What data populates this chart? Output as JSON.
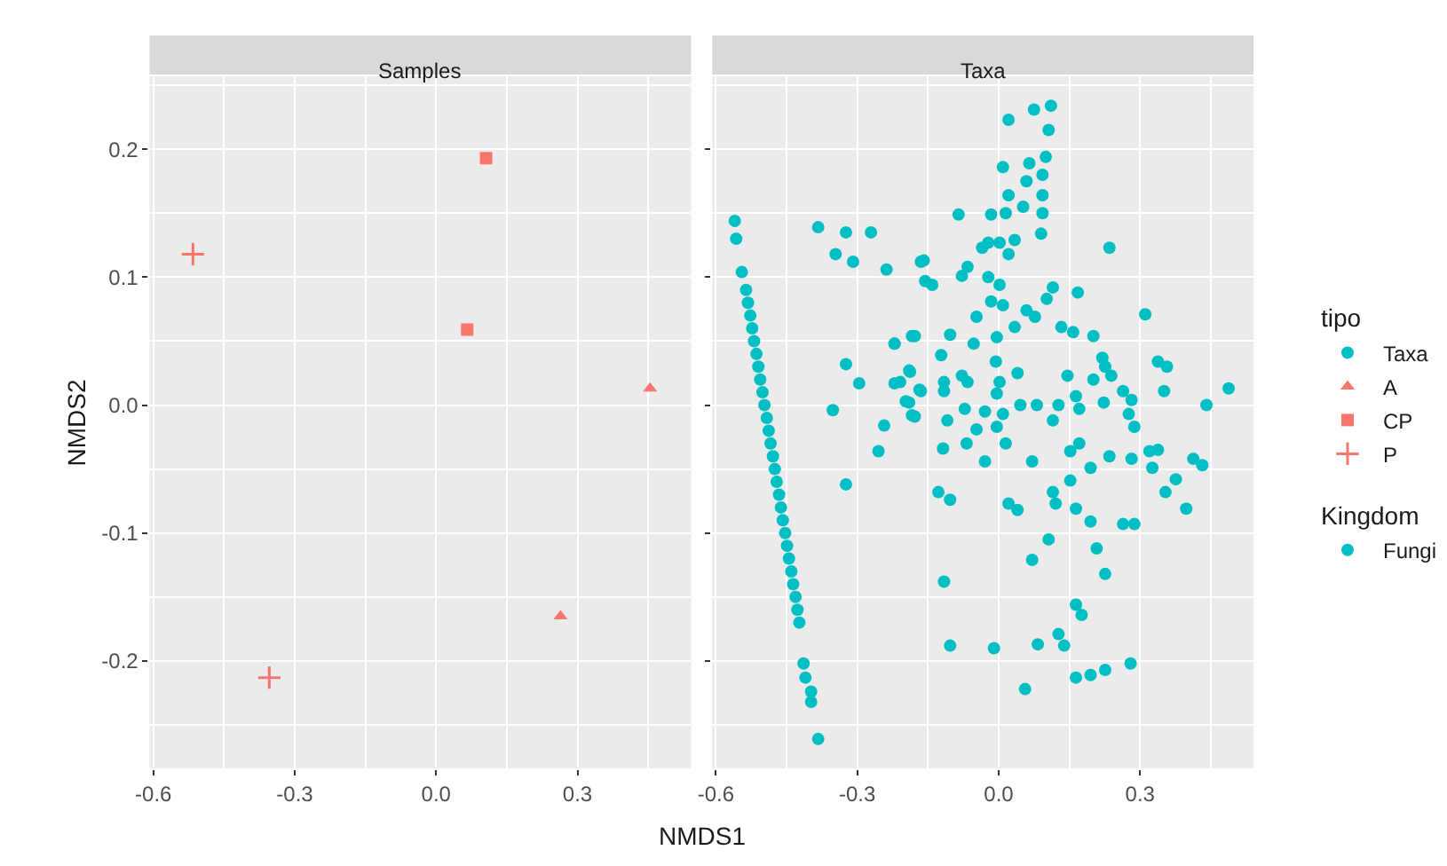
{
  "chart_data": [
    {
      "type": "scatter",
      "title": "Samples",
      "xlabel": "NMDS1",
      "ylabel": "NMDS2",
      "legend_title": "tipo",
      "legend": "right",
      "grid": true,
      "xlim": [
        -0.608,
        0.541
      ],
      "ylim": [
        -0.284,
        0.257
      ],
      "xticks": [
        -0.6,
        -0.3,
        {
          "value": 0,
          "label": "0.0"
        },
        0.3
      ],
      "yticks": [
        -0.2,
        -0.1,
        {
          "value": 0,
          "label": "0.0"
        },
        0.1,
        0.2
      ],
      "series": [
        {
          "name": "Taxa",
          "marker": "circle",
          "color": "#00bfc4",
          "x": [
            null
          ],
          "values": [
            null
          ]
        },
        {
          "name": "A",
          "marker": "triangle",
          "color": "#f8766d",
          "x": [
            0.454,
            0.264
          ],
          "values": [
            0.013,
            -0.165
          ]
        },
        {
          "name": "CP",
          "marker": "square",
          "color": "#f8766d",
          "x": [
            0.106,
            0.066
          ],
          "values": [
            0.193,
            0.059
          ]
        },
        {
          "name": "P",
          "marker": "cross",
          "color": "#f8766d",
          "x": [
            -0.516,
            -0.354
          ],
          "values": [
            0.118,
            -0.213
          ]
        }
      ]
    },
    {
      "type": "scatter",
      "title": "Taxa",
      "legend_title": "Kingdom",
      "legend": "right",
      "grid": true,
      "tick_labels": "x",
      "xlim": [
        -0.608,
        0.541
      ],
      "ylim": [
        -0.284,
        0.257
      ],
      "xticks": [
        -0.6,
        -0.3,
        {
          "value": 0,
          "label": "0.0"
        },
        0.3
      ],
      "yticks": [
        -0.2,
        -0.1,
        0,
        0.1,
        0.2
      ],
      "series": [
        {
          "name": "Fungi",
          "marker": "circle",
          "color": "#00bfc4",
          "x": [
            -0.56,
            -0.557,
            -0.545,
            -0.536,
            -0.532,
            -0.527,
            -0.523,
            -0.519,
            -0.514,
            -0.51,
            -0.506,
            -0.501,
            -0.497,
            -0.492,
            -0.488,
            -0.484,
            -0.479,
            -0.475,
            -0.471,
            -0.466,
            -0.462,
            -0.458,
            -0.453,
            -0.449,
            -0.445,
            -0.44,
            -0.436,
            -0.431,
            -0.427,
            -0.423,
            -0.414,
            -0.41,
            -0.398,
            -0.398,
            -0.383,
            -0.383,
            -0.324,
            -0.271,
            -0.346,
            -0.309,
            -0.238,
            -0.165,
            -0.156,
            -0.221,
            -0.184,
            -0.324,
            -0.296,
            -0.221,
            -0.188,
            -0.168,
            -0.197,
            -0.184,
            -0.352,
            -0.243,
            -0.255,
            -0.324,
            0.021,
            0.075,
            0.111,
            0.106,
            0.009,
            0.065,
            0.1,
            0.059,
            0.093,
            0.021,
            0.052,
            0.093,
            0.093,
            -0.085,
            -0.016,
            0.015,
            0.09,
            -0.022,
            0.002,
            0.034,
            -0.035,
            0.021,
            0.235,
            -0.159,
            -0.066,
            -0.078,
            -0.141,
            -0.022,
            0.002,
            0.115,
            0.168,
            0.102,
            -0.016,
            0.009,
            -0.047,
            0.059,
            0.077,
            0.311,
            0.034,
            -0.103,
            0.133,
            0.158,
            0.201,
            -0.178,
            -0.053,
            -0.004,
            -0.221,
            -0.122,
            0.22,
            0.338,
            0.357,
            -0.006,
            -0.078,
            0.04,
            0.146,
            0.226,
            0.239,
            -0.19,
            -0.116,
            0.002,
            0.201,
            0.488,
            -0.209,
            -0.165,
            -0.116,
            -0.066,
            -0.004,
            0.046,
            0.081,
            0.127,
            0.164,
            0.223,
            0.264,
            0.282,
            0.351,
            0.441,
            -0.19,
            -0.072,
            -0.029,
            0.009,
            0.171,
            0.276,
            -0.178,
            -0.109,
            0.115,
            0.288,
            -0.047,
            -0.004,
            -0.068,
            -0.118,
            0.015,
            -0.029,
            0.071,
            0.171,
            0.152,
            0.195,
            0.235,
            0.282,
            0.32,
            0.338,
            0.326,
            0.413,
            0.432,
            0.376,
            0.354,
            0.398,
            0.152,
            0.115,
            0.121,
            0.164,
            0.195,
            -0.128,
            -0.103,
            0.021,
            0.04,
            0.264,
            0.288,
            0.106,
            0.208,
            0.071,
            0.226,
            -0.116,
            0.164,
            0.176,
            0.127,
            0.083,
            0.139,
            -0.103,
            -0.01,
            0.164,
            0.195,
            0.226,
            0.28,
            0.056
          ],
          "values": [
            0.144,
            0.13,
            0.104,
            0.09,
            0.08,
            0.07,
            0.06,
            0.05,
            0.04,
            0.03,
            0.02,
            0.01,
            0.0,
            -0.01,
            -0.02,
            -0.03,
            -0.04,
            -0.05,
            -0.06,
            -0.07,
            -0.08,
            -0.09,
            -0.1,
            -0.11,
            -0.12,
            -0.13,
            -0.14,
            -0.15,
            -0.16,
            -0.17,
            -0.202,
            -0.213,
            -0.224,
            -0.232,
            -0.261,
            0.139,
            0.135,
            0.135,
            0.118,
            0.112,
            0.106,
            0.112,
            0.097,
            0.048,
            0.054,
            0.032,
            0.017,
            0.017,
            0.026,
            0.012,
            0.003,
            -0.008,
            -0.004,
            -0.016,
            -0.036,
            -0.062,
            0.223,
            0.231,
            0.234,
            0.215,
            0.186,
            0.189,
            0.194,
            0.175,
            0.18,
            0.164,
            0.155,
            0.164,
            0.15,
            0.149,
            0.149,
            0.15,
            0.134,
            0.127,
            0.127,
            0.129,
            0.123,
            0.118,
            0.123,
            0.113,
            0.108,
            0.101,
            0.094,
            0.1,
            0.094,
            0.092,
            0.088,
            0.083,
            0.081,
            0.078,
            0.069,
            0.074,
            0.069,
            0.071,
            0.061,
            0.055,
            0.061,
            0.057,
            0.054,
            0.054,
            0.048,
            0.053,
            0.048,
            0.039,
            0.037,
            0.034,
            0.03,
            0.034,
            0.023,
            0.025,
            0.023,
            0.03,
            0.023,
            0.027,
            0.018,
            0.018,
            0.02,
            0.013,
            0.018,
            0.011,
            0.011,
            0.018,
            0.009,
            0.0,
            0.0,
            0.0,
            0.007,
            0.002,
            0.011,
            0.004,
            0.011,
            0.0,
            0.002,
            -0.003,
            -0.005,
            -0.007,
            -0.003,
            -0.007,
            -0.009,
            -0.012,
            -0.012,
            -0.017,
            -0.019,
            -0.017,
            -0.03,
            -0.034,
            -0.03,
            -0.044,
            -0.044,
            -0.03,
            -0.036,
            -0.049,
            -0.04,
            -0.042,
            -0.036,
            -0.035,
            -0.049,
            -0.042,
            -0.047,
            -0.058,
            -0.068,
            -0.081,
            -0.059,
            -0.068,
            -0.077,
            -0.081,
            -0.091,
            -0.068,
            -0.074,
            -0.077,
            -0.082,
            -0.093,
            -0.093,
            -0.105,
            -0.112,
            -0.121,
            -0.132,
            -0.138,
            -0.156,
            -0.164,
            -0.179,
            -0.187,
            -0.188,
            -0.188,
            -0.19,
            -0.213,
            -0.211,
            -0.207,
            -0.202,
            -0.222
          ]
        }
      ]
    }
  ]
}
